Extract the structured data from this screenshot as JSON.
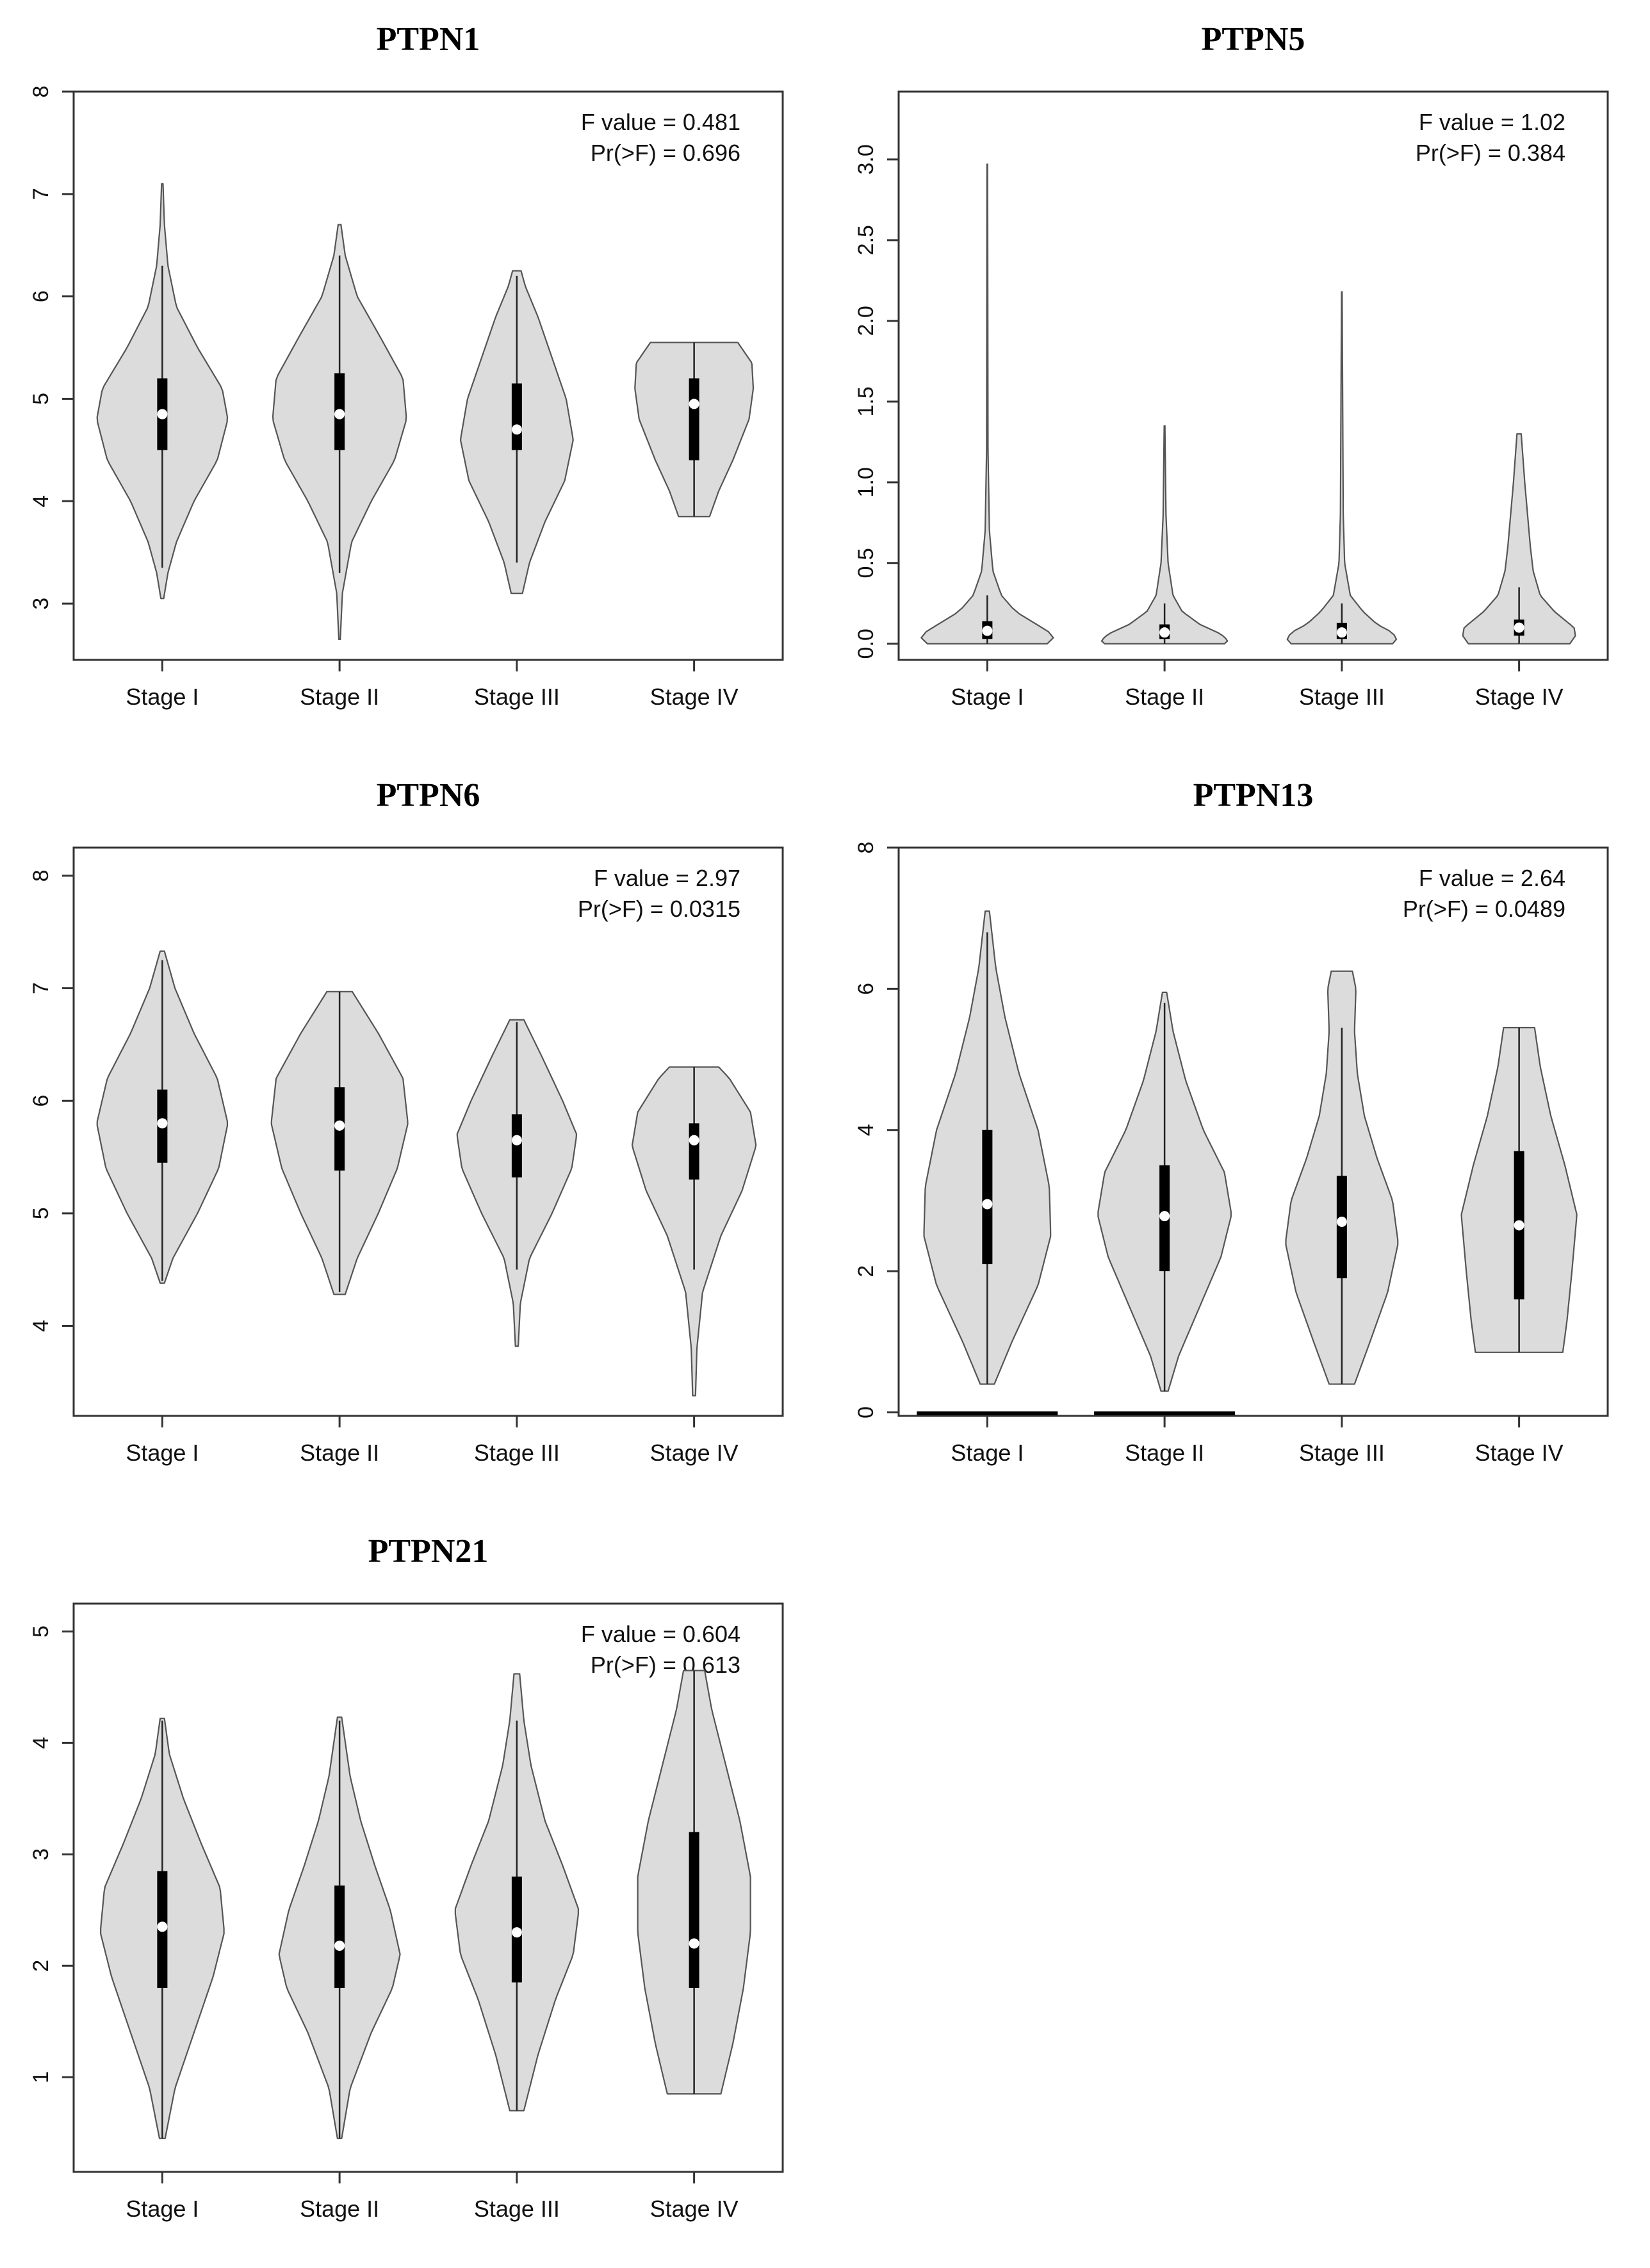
{
  "chart_data": [
    {
      "type": "violin",
      "title": "PTPN1",
      "categories": [
        "Stage I",
        "Stage II",
        "Stage III",
        "Stage IV"
      ],
      "ylim": [
        2.45,
        8.0
      ],
      "yticks": [
        3,
        4,
        5,
        6,
        7,
        8
      ],
      "stats": {
        "f_value": "F value = 0.481",
        "pr_f": "Pr(>F) = 0.696"
      },
      "violins": [
        {
          "min": 3.05,
          "max": 7.1,
          "q1": 4.5,
          "median": 4.85,
          "q3": 5.2,
          "whisker_low": 3.35,
          "whisker_high": 6.3,
          "profile": [
            [
              3.05,
              0.02
            ],
            [
              3.3,
              0.08
            ],
            [
              3.6,
              0.2
            ],
            [
              4.0,
              0.45
            ],
            [
              4.4,
              0.78
            ],
            [
              4.8,
              0.93
            ],
            [
              5.1,
              0.85
            ],
            [
              5.5,
              0.5
            ],
            [
              5.9,
              0.2
            ],
            [
              6.3,
              0.08
            ],
            [
              6.7,
              0.03
            ],
            [
              7.1,
              0.01
            ]
          ]
        },
        {
          "min": 2.65,
          "max": 6.7,
          "q1": 4.5,
          "median": 4.85,
          "q3": 5.25,
          "whisker_low": 3.3,
          "whisker_high": 6.4,
          "profile": [
            [
              2.65,
              0.01
            ],
            [
              3.1,
              0.04
            ],
            [
              3.6,
              0.17
            ],
            [
              4.0,
              0.45
            ],
            [
              4.4,
              0.78
            ],
            [
              4.8,
              0.95
            ],
            [
              5.2,
              0.9
            ],
            [
              5.6,
              0.58
            ],
            [
              6.0,
              0.25
            ],
            [
              6.4,
              0.08
            ],
            [
              6.7,
              0.02
            ]
          ]
        },
        {
          "min": 3.1,
          "max": 6.25,
          "q1": 4.5,
          "median": 4.7,
          "q3": 5.15,
          "whisker_low": 3.4,
          "whisker_high": 6.2,
          "profile": [
            [
              3.1,
              0.08
            ],
            [
              3.4,
              0.18
            ],
            [
              3.8,
              0.4
            ],
            [
              4.2,
              0.68
            ],
            [
              4.6,
              0.8
            ],
            [
              5.0,
              0.7
            ],
            [
              5.4,
              0.5
            ],
            [
              5.8,
              0.3
            ],
            [
              6.1,
              0.12
            ],
            [
              6.25,
              0.06
            ]
          ]
        },
        {
          "min": 3.85,
          "max": 5.55,
          "q1": 4.4,
          "median": 4.95,
          "q3": 5.2,
          "whisker_low": 3.85,
          "whisker_high": 5.55,
          "profile": [
            [
              3.85,
              0.22
            ],
            [
              4.1,
              0.35
            ],
            [
              4.4,
              0.55
            ],
            [
              4.8,
              0.78
            ],
            [
              5.1,
              0.84
            ],
            [
              5.35,
              0.82
            ],
            [
              5.55,
              0.62
            ]
          ]
        }
      ]
    },
    {
      "type": "violin",
      "title": "PTPN5",
      "categories": [
        "Stage I",
        "Stage II",
        "Stage III",
        "Stage IV"
      ],
      "ylim": [
        -0.1,
        3.42
      ],
      "yticks": [
        0.0,
        0.5,
        1.0,
        1.5,
        2.0,
        2.5,
        3.0
      ],
      "stats": {
        "f_value": "F value = 1.02",
        "pr_f": "Pr(>F) = 0.384"
      },
      "violins": [
        {
          "min": 0.0,
          "max": 2.97,
          "q1": 0.03,
          "median": 0.08,
          "q3": 0.14,
          "whisker_low": 0.0,
          "whisker_high": 0.3,
          "profile": [
            [
              0.0,
              0.85
            ],
            [
              0.02,
              0.95
            ],
            [
              0.06,
              0.92
            ],
            [
              0.12,
              0.7
            ],
            [
              0.2,
              0.4
            ],
            [
              0.3,
              0.2
            ],
            [
              0.45,
              0.08
            ],
            [
              0.7,
              0.03
            ],
            [
              1.2,
              0.01
            ],
            [
              2.97,
              0.004
            ]
          ]
        },
        {
          "min": 0.0,
          "max": 1.35,
          "q1": 0.03,
          "median": 0.07,
          "q3": 0.12,
          "whisker_low": 0.0,
          "whisker_high": 0.25,
          "profile": [
            [
              0.0,
              0.85
            ],
            [
              0.02,
              0.9
            ],
            [
              0.06,
              0.8
            ],
            [
              0.12,
              0.5
            ],
            [
              0.2,
              0.25
            ],
            [
              0.3,
              0.12
            ],
            [
              0.5,
              0.05
            ],
            [
              0.8,
              0.02
            ],
            [
              1.35,
              0.005
            ]
          ]
        },
        {
          "min": 0.0,
          "max": 2.18,
          "q1": 0.03,
          "median": 0.07,
          "q3": 0.13,
          "whisker_low": 0.0,
          "whisker_high": 0.25,
          "profile": [
            [
              0.0,
              0.72
            ],
            [
              0.03,
              0.78
            ],
            [
              0.07,
              0.72
            ],
            [
              0.12,
              0.5
            ],
            [
              0.2,
              0.3
            ],
            [
              0.3,
              0.12
            ],
            [
              0.5,
              0.04
            ],
            [
              0.8,
              0.02
            ],
            [
              2.18,
              0.004
            ]
          ]
        },
        {
          "min": 0.0,
          "max": 1.3,
          "q1": 0.05,
          "median": 0.1,
          "q3": 0.15,
          "whisker_low": 0.0,
          "whisker_high": 0.35,
          "profile": [
            [
              0.0,
              0.72
            ],
            [
              0.05,
              0.8
            ],
            [
              0.1,
              0.78
            ],
            [
              0.2,
              0.5
            ],
            [
              0.3,
              0.3
            ],
            [
              0.45,
              0.2
            ],
            [
              0.6,
              0.16
            ],
            [
              0.8,
              0.12
            ],
            [
              1.0,
              0.08
            ],
            [
              1.3,
              0.03
            ]
          ]
        }
      ]
    },
    {
      "type": "violin",
      "title": "PTPN6",
      "categories": [
        "Stage I",
        "Stage II",
        "Stage III",
        "Stage IV"
      ],
      "ylim": [
        3.2,
        8.25
      ],
      "yticks": [
        4,
        5,
        6,
        7,
        8
      ],
      "stats": {
        "f_value": "F value = 2.97",
        "pr_f": "Pr(>F) = 0.0315"
      },
      "violins": [
        {
          "min": 4.38,
          "max": 7.33,
          "q1": 5.45,
          "median": 5.8,
          "q3": 6.1,
          "whisker_low": 4.4,
          "whisker_high": 7.25,
          "profile": [
            [
              4.38,
              0.03
            ],
            [
              4.6,
              0.15
            ],
            [
              5.0,
              0.5
            ],
            [
              5.4,
              0.8
            ],
            [
              5.8,
              0.93
            ],
            [
              6.2,
              0.78
            ],
            [
              6.6,
              0.45
            ],
            [
              7.0,
              0.18
            ],
            [
              7.33,
              0.03
            ]
          ]
        },
        {
          "min": 4.28,
          "max": 6.97,
          "q1": 5.38,
          "median": 5.78,
          "q3": 6.12,
          "whisker_low": 4.3,
          "whisker_high": 6.97,
          "profile": [
            [
              4.28,
              0.08
            ],
            [
              4.6,
              0.25
            ],
            [
              5.0,
              0.55
            ],
            [
              5.4,
              0.82
            ],
            [
              5.8,
              0.97
            ],
            [
              6.2,
              0.9
            ],
            [
              6.6,
              0.55
            ],
            [
              6.97,
              0.18
            ]
          ]
        },
        {
          "min": 3.82,
          "max": 6.72,
          "q1": 5.32,
          "median": 5.65,
          "q3": 5.88,
          "whisker_low": 4.5,
          "whisker_high": 6.7,
          "profile": [
            [
              3.82,
              0.02
            ],
            [
              4.2,
              0.05
            ],
            [
              4.6,
              0.18
            ],
            [
              5.0,
              0.5
            ],
            [
              5.4,
              0.78
            ],
            [
              5.7,
              0.85
            ],
            [
              6.0,
              0.65
            ],
            [
              6.4,
              0.35
            ],
            [
              6.72,
              0.1
            ]
          ]
        },
        {
          "min": 3.38,
          "max": 6.3,
          "q1": 5.3,
          "median": 5.65,
          "q3": 5.8,
          "whisker_low": 4.5,
          "whisker_high": 6.3,
          "profile": [
            [
              3.38,
              0.02
            ],
            [
              3.8,
              0.04
            ],
            [
              4.3,
              0.12
            ],
            [
              4.8,
              0.38
            ],
            [
              5.2,
              0.68
            ],
            [
              5.6,
              0.88
            ],
            [
              5.9,
              0.8
            ],
            [
              6.2,
              0.5
            ],
            [
              6.3,
              0.35
            ]
          ]
        }
      ]
    },
    {
      "type": "violin",
      "title": "PTPN13",
      "categories": [
        "Stage I",
        "Stage II",
        "Stage III",
        "Stage IV"
      ],
      "ylim": [
        -0.05,
        8.0
      ],
      "yticks": [
        0,
        2,
        4,
        6,
        8
      ],
      "stats": {
        "f_value": "F value = 2.64",
        "pr_f": "Pr(>F) = 0.0489"
      },
      "violins": [
        {
          "min": 0.4,
          "max": 7.1,
          "q1": 2.1,
          "median": 2.95,
          "q3": 4.0,
          "whisker_low": 0.4,
          "whisker_high": 6.8,
          "baseline": true,
          "profile": [
            [
              0.4,
              0.1
            ],
            [
              1.0,
              0.35
            ],
            [
              1.8,
              0.72
            ],
            [
              2.5,
              0.9
            ],
            [
              3.2,
              0.88
            ],
            [
              4.0,
              0.72
            ],
            [
              4.8,
              0.45
            ],
            [
              5.6,
              0.25
            ],
            [
              6.3,
              0.12
            ],
            [
              7.1,
              0.03
            ]
          ]
        },
        {
          "min": 0.3,
          "max": 5.95,
          "q1": 2.0,
          "median": 2.78,
          "q3": 3.5,
          "whisker_low": 0.3,
          "whisker_high": 5.8,
          "baseline": true,
          "profile": [
            [
              0.3,
              0.05
            ],
            [
              0.8,
              0.2
            ],
            [
              1.5,
              0.5
            ],
            [
              2.2,
              0.8
            ],
            [
              2.8,
              0.95
            ],
            [
              3.4,
              0.85
            ],
            [
              4.0,
              0.55
            ],
            [
              4.7,
              0.3
            ],
            [
              5.4,
              0.12
            ],
            [
              5.95,
              0.03
            ]
          ]
        },
        {
          "min": 0.4,
          "max": 6.25,
          "q1": 1.9,
          "median": 2.7,
          "q3": 3.35,
          "whisker_low": 0.4,
          "whisker_high": 5.45,
          "profile": [
            [
              0.4,
              0.18
            ],
            [
              1.0,
              0.4
            ],
            [
              1.7,
              0.65
            ],
            [
              2.4,
              0.8
            ],
            [
              3.0,
              0.72
            ],
            [
              3.6,
              0.5
            ],
            [
              4.2,
              0.32
            ],
            [
              4.8,
              0.22
            ],
            [
              5.4,
              0.18
            ],
            [
              6.0,
              0.2
            ],
            [
              6.25,
              0.15
            ]
          ]
        },
        {
          "min": 0.85,
          "max": 5.45,
          "q1": 1.6,
          "median": 2.65,
          "q3": 3.7,
          "whisker_low": 0.85,
          "whisker_high": 5.45,
          "profile": [
            [
              0.85,
              0.62
            ],
            [
              1.3,
              0.68
            ],
            [
              2.0,
              0.75
            ],
            [
              2.8,
              0.82
            ],
            [
              3.5,
              0.65
            ],
            [
              4.2,
              0.45
            ],
            [
              4.9,
              0.3
            ],
            [
              5.45,
              0.22
            ]
          ]
        }
      ]
    },
    {
      "type": "violin",
      "title": "PTPN21",
      "categories": [
        "Stage I",
        "Stage II",
        "Stage III",
        "Stage IV"
      ],
      "ylim": [
        0.15,
        5.25
      ],
      "yticks": [
        1,
        2,
        3,
        4,
        5
      ],
      "stats": {
        "f_value": "F value = 0.604",
        "pr_f": "Pr(>F) = 0.613"
      },
      "violins": [
        {
          "min": 0.45,
          "max": 4.22,
          "q1": 1.8,
          "median": 2.35,
          "q3": 2.85,
          "whisker_low": 0.45,
          "whisker_high": 4.2,
          "profile": [
            [
              0.45,
              0.04
            ],
            [
              0.9,
              0.18
            ],
            [
              1.4,
              0.45
            ],
            [
              1.9,
              0.72
            ],
            [
              2.3,
              0.88
            ],
            [
              2.7,
              0.82
            ],
            [
              3.1,
              0.55
            ],
            [
              3.5,
              0.3
            ],
            [
              3.9,
              0.1
            ],
            [
              4.22,
              0.03
            ]
          ]
        },
        {
          "min": 0.45,
          "max": 4.23,
          "q1": 1.8,
          "median": 2.18,
          "q3": 2.72,
          "whisker_low": 0.45,
          "whisker_high": 4.2,
          "profile": [
            [
              0.45,
              0.03
            ],
            [
              0.9,
              0.15
            ],
            [
              1.4,
              0.45
            ],
            [
              1.8,
              0.75
            ],
            [
              2.1,
              0.86
            ],
            [
              2.5,
              0.72
            ],
            [
              2.9,
              0.5
            ],
            [
              3.3,
              0.3
            ],
            [
              3.7,
              0.15
            ],
            [
              4.23,
              0.03
            ]
          ]
        },
        {
          "min": 0.7,
          "max": 4.62,
          "q1": 1.85,
          "median": 2.3,
          "q3": 2.8,
          "whisker_low": 0.7,
          "whisker_high": 4.2,
          "profile": [
            [
              0.7,
              0.1
            ],
            [
              1.2,
              0.3
            ],
            [
              1.7,
              0.55
            ],
            [
              2.1,
              0.8
            ],
            [
              2.5,
              0.88
            ],
            [
              2.9,
              0.65
            ],
            [
              3.3,
              0.4
            ],
            [
              3.8,
              0.2
            ],
            [
              4.2,
              0.1
            ],
            [
              4.62,
              0.04
            ]
          ]
        },
        {
          "min": 0.85,
          "max": 4.65,
          "q1": 1.8,
          "median": 2.2,
          "q3": 3.2,
          "whisker_low": 0.85,
          "whisker_high": 4.65,
          "profile": [
            [
              0.85,
              0.38
            ],
            [
              1.3,
              0.55
            ],
            [
              1.8,
              0.7
            ],
            [
              2.3,
              0.8
            ],
            [
              2.8,
              0.8
            ],
            [
              3.3,
              0.65
            ],
            [
              3.8,
              0.45
            ],
            [
              4.3,
              0.25
            ],
            [
              4.65,
              0.15
            ]
          ]
        }
      ]
    }
  ]
}
